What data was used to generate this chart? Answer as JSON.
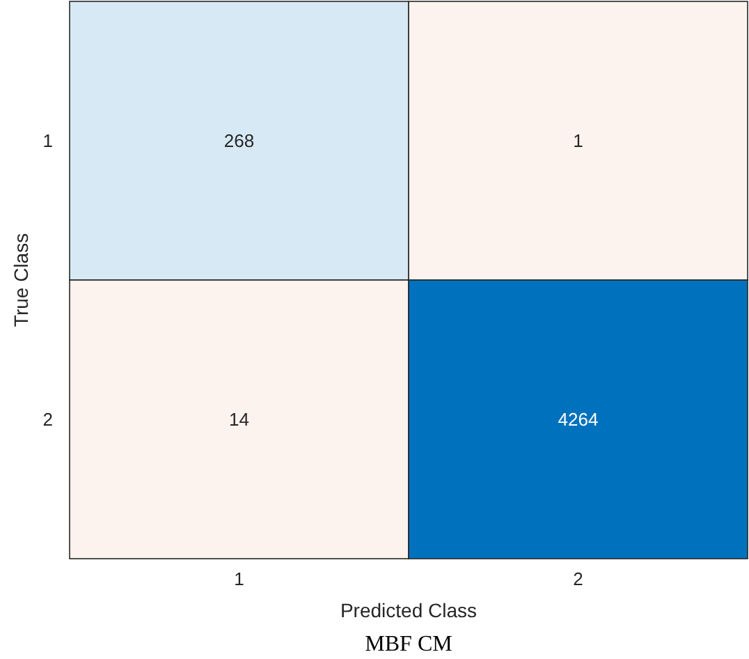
{
  "chart_data": {
    "type": "heatmap",
    "title": "MBF CM",
    "xlabel": "Predicted Class",
    "ylabel": "True Class",
    "categories": [
      "1",
      "2"
    ],
    "y_categories": [
      "1",
      "2"
    ],
    "cells": [
      [
        268,
        1
      ],
      [
        14,
        4264
      ]
    ],
    "data_labels": true
  }
}
